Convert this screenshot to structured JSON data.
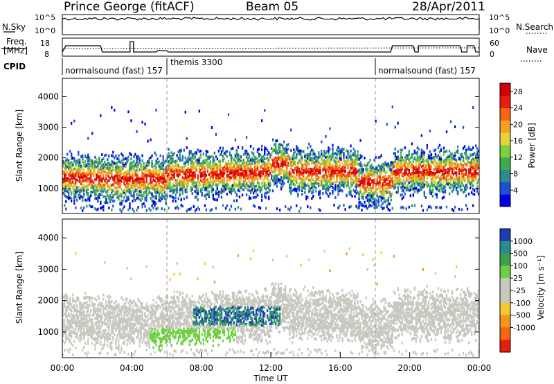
{
  "header": {
    "station": "Prince George (fitACF)",
    "beam": "Beam 05",
    "date": "28/Apr/2011"
  },
  "panels": {
    "nsky": {
      "label": "N.Sky",
      "ticks": [
        "10^5",
        "10^0"
      ],
      "right_ticks": [
        "10^5",
        "10^0"
      ],
      "right_label": "N.Search"
    },
    "freq": {
      "label_line1": "Freq.",
      "label_line2": "[MHz]",
      "ticks": [
        "18",
        "8"
      ],
      "right_ticks": [
        "60",
        "0"
      ],
      "right_label": "Nave"
    },
    "cpid": {
      "label": "CPID",
      "segments": [
        {
          "text": "normalsound (fast) 157",
          "start_h": 0
        },
        {
          "text": "themis 3300",
          "start_h": 6.0
        },
        {
          "text": "normalsound (fast) 157",
          "start_h": 18.0
        }
      ]
    }
  },
  "chart_data": [
    {
      "type": "heatmap",
      "name": "power",
      "ylabel": "Slant Range [km]",
      "xlabel": "Time UT",
      "x_ticks": [
        "00:00",
        "04:00",
        "08:00",
        "12:00",
        "16:00",
        "20:00",
        "00:00"
      ],
      "xlim_hours": [
        0,
        24
      ],
      "y_ticks": [
        1000,
        2000,
        3000,
        4000
      ],
      "ylim_km": [
        180,
        4600
      ],
      "colorbar": {
        "label": "Power [dB]",
        "ticks": [
          4,
          8,
          12,
          16,
          20,
          24,
          28
        ],
        "range": [
          0,
          30
        ],
        "colors": [
          "#0000e6",
          "#1e50d2",
          "#2a8c8c",
          "#3faa50",
          "#7ad040",
          "#e6d23c",
          "#f5a023",
          "#f56414",
          "#e61e0a",
          "#d20000"
        ]
      }
    },
    {
      "type": "heatmap",
      "name": "velocity",
      "ylabel": "Slant Range [km]",
      "xlabel": "Time UT",
      "x_ticks": [
        "00:00",
        "04:00",
        "08:00",
        "12:00",
        "16:00",
        "20:00",
        "00:00"
      ],
      "xlim_hours": [
        0,
        24
      ],
      "y_ticks": [
        1000,
        2000,
        3000,
        4000
      ],
      "ylim_km": [
        180,
        4600
      ],
      "colorbar": {
        "label": "Velocity [m s⁻¹]",
        "ticks": [
          "1000",
          "500",
          "100",
          "25",
          "-25",
          "-100",
          "-500",
          "-1000"
        ],
        "colors": [
          "#1e3cb4",
          "#2a8c8c",
          "#3aa050",
          "#6ed040",
          "#c8c8c0",
          "#c8c8c0",
          "#f5c832",
          "#f59620",
          "#f56414",
          "#e61e0a"
        ]
      }
    }
  ],
  "axes": {
    "xlabel": "Time UT"
  }
}
